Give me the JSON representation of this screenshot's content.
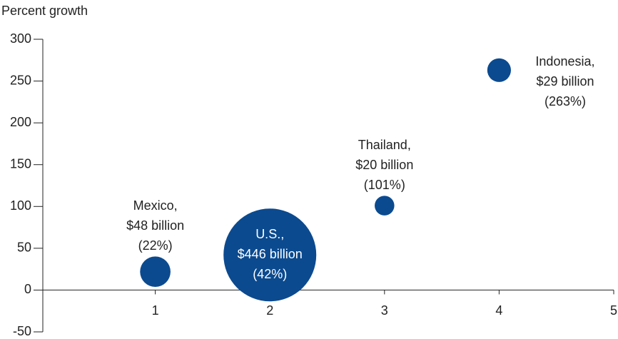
{
  "chart_data": {
    "type": "bubble",
    "ylabel": "Percent growth",
    "x": [
      1,
      2,
      3,
      4
    ],
    "values": [
      22,
      42,
      101,
      263
    ],
    "sizes": [
      48,
      446,
      20,
      29
    ],
    "names": [
      "Mexico,",
      "U.S.,",
      "Thailand,",
      "Indonesia,"
    ],
    "size_labels": [
      "$48 billion",
      "$446 billion",
      "$20 billion",
      "$29 billion"
    ],
    "value_labels": [
      "(22%)",
      "(42%)",
      "(101%)",
      "(263%)"
    ],
    "color": "#0b4a8f",
    "xlim": [
      0,
      5
    ],
    "ylim": [
      -50,
      300
    ],
    "xticks": [
      1,
      2,
      3,
      4,
      5
    ],
    "yticks": [
      -50,
      0,
      50,
      100,
      150,
      200,
      250,
      300
    ]
  }
}
